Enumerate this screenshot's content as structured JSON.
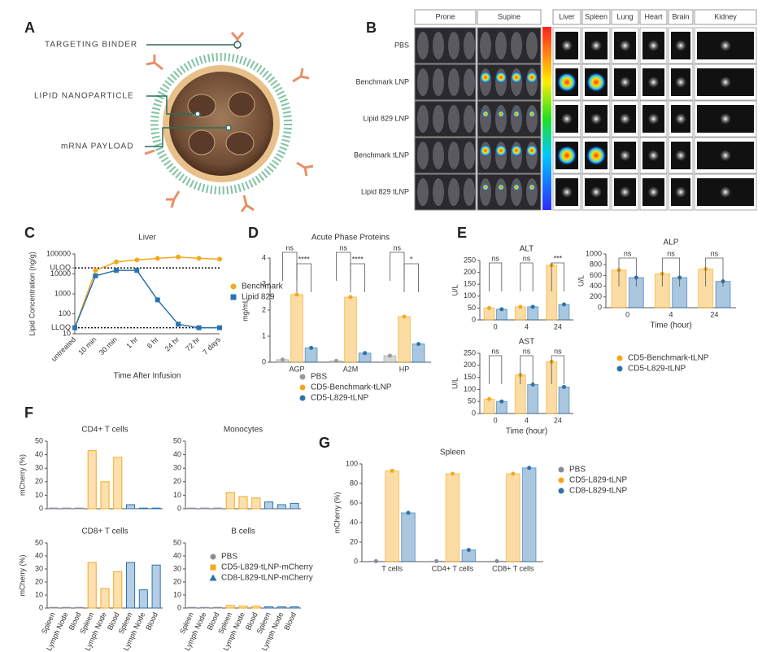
{
  "panels": [
    "A",
    "B",
    "C",
    "D",
    "E",
    "F",
    "G"
  ],
  "diagram": {
    "labels": [
      "TARGETING BINDER",
      "LIPID NANOPARTICLE",
      "mRNA PAYLOAD"
    ]
  },
  "imaging": {
    "views": [
      "Prone",
      "Supine"
    ],
    "organs": [
      "Liver",
      "Spleen",
      "Lung",
      "Heart",
      "Brain",
      "Kidney"
    ],
    "rows": [
      "PBS",
      "Benchmark LNP",
      "Lipid 829 LNP",
      "Benchmark tLNP",
      "Lipid 829 tLNP"
    ]
  },
  "chart_data": [
    {
      "type": "line",
      "title": "Liver",
      "x_label": "Time After Infusion",
      "y_label": "Lipid Concentration (ng/g)",
      "categories": [
        "untreated",
        "10 min",
        "30 min",
        "1 hr",
        "6 hr",
        "24 hr",
        "72 hr",
        "7 days"
      ],
      "log_scale": true,
      "ylim": [
        10,
        100000
      ],
      "yticks": [
        10,
        100,
        1000,
        10000,
        100000,
        {
          "value": 20000,
          "label": "ULOQ"
        },
        {
          "value": 20,
          "label": "LLOQ"
        }
      ],
      "series": [
        {
          "name": "Benchmark",
          "color": "#f5a81c",
          "marker": "circle",
          "values": [
            20,
            15000,
            40000,
            50000,
            60000,
            70000,
            60000,
            55000
          ]
        },
        {
          "name": "Lipid 829",
          "color": "#2b73b0",
          "marker": "square",
          "values": [
            20,
            8000,
            15000,
            15000,
            500,
            30,
            20,
            20
          ]
        }
      ]
    },
    {
      "type": "bar",
      "title": "Acute Phase Proteins",
      "y_label": "mg/mL",
      "categories": [
        "AGP",
        "A2M",
        "HP"
      ],
      "ylim": [
        0,
        4
      ],
      "yticks": [
        0,
        1,
        2,
        3,
        4
      ],
      "annotations": [
        "ns",
        "****",
        "ns",
        "****",
        "ns",
        "*"
      ],
      "series": [
        {
          "name": "PBS",
          "color": "#9a9a9a",
          "marker": "circle",
          "values": [
            0.1,
            0.05,
            0.25
          ]
        },
        {
          "name": "CD5-Benchmark-tLNP",
          "color": "#f5a81c",
          "marker": "circle",
          "values": [
            2.6,
            2.5,
            1.75
          ]
        },
        {
          "name": "CD5-L829-tLNP",
          "color": "#2b73b0",
          "marker": "circle",
          "values": [
            0.55,
            0.35,
            0.7
          ]
        }
      ]
    },
    {
      "type": "bar",
      "title": "ALT",
      "y_label": "U/L",
      "categories": [
        "0",
        "4",
        "24"
      ],
      "ylim": [
        0,
        250
      ],
      "yticks": [
        0,
        50,
        100,
        150,
        200,
        250
      ],
      "annotations": [
        "ns",
        "ns",
        "***"
      ],
      "series": [
        {
          "name": "CD5-Benchmark-tLNP",
          "color": "#f5a81c",
          "marker": "circle",
          "values": [
            50,
            55,
            230
          ]
        },
        {
          "name": "CD5-L829-tLNP",
          "color": "#2b73b0",
          "marker": "circle",
          "values": [
            45,
            55,
            65
          ]
        }
      ]
    },
    {
      "type": "bar",
      "title": "ALP",
      "y_label": "U/L",
      "x_label": "Time (hour)",
      "categories": [
        "0",
        "4",
        "24"
      ],
      "ylim": [
        0,
        1000
      ],
      "yticks": [
        0,
        200,
        400,
        600,
        800,
        1000
      ],
      "annotations": [
        "ns",
        "ns",
        "ns"
      ],
      "series": [
        {
          "color": "#f5a81c",
          "values": [
            700,
            630,
            720
          ]
        },
        {
          "color": "#2b73b0",
          "values": [
            560,
            560,
            490
          ]
        }
      ]
    },
    {
      "type": "bar",
      "title": "AST",
      "y_label": "U/L",
      "x_label": "Time (hour)",
      "categories": [
        "0",
        "4",
        "24"
      ],
      "ylim": [
        0,
        250
      ],
      "yticks": [
        0,
        50,
        100,
        150,
        200,
        250
      ],
      "annotations": [
        "ns",
        "ns",
        "ns"
      ],
      "series": [
        {
          "color": "#f5a81c",
          "values": [
            60,
            160,
            215
          ]
        },
        {
          "color": "#2b73b0",
          "values": [
            50,
            120,
            110
          ]
        }
      ]
    },
    {
      "type": "bar",
      "title": "CD4+ T cells",
      "y_label": "mCherry (%)",
      "categories": [
        "Spleen",
        "Lymph Node",
        "Blood"
      ],
      "ylim": [
        0,
        50
      ],
      "yticks": [
        0,
        10,
        20,
        30,
        40,
        50
      ],
      "series": [
        {
          "color": "#8a8a9a",
          "values": [
            0.5,
            0.5,
            0.5
          ]
        },
        {
          "color": "#f5a81c",
          "values": [
            43,
            20,
            38
          ]
        },
        {
          "color": "#2b73b0",
          "values": [
            3,
            0.5,
            0.5
          ]
        }
      ]
    },
    {
      "type": "bar",
      "title": "Monocytes",
      "categories": [
        "Spleen",
        "Lymph Node",
        "Blood"
      ],
      "ylim": [
        0,
        50
      ],
      "yticks": [
        0,
        10,
        20,
        30,
        40,
        50
      ],
      "series": [
        {
          "color": "#8a8a9a",
          "values": [
            0.5,
            0.5,
            0.5
          ]
        },
        {
          "color": "#f5a81c",
          "values": [
            12,
            9,
            8
          ]
        },
        {
          "color": "#2b73b0",
          "values": [
            5,
            3,
            4
          ]
        }
      ]
    },
    {
      "type": "bar",
      "title": "CD8+ T cells",
      "y_label": "mCherry (%)",
      "categories": [
        "Spleen",
        "Lymph Node",
        "Blood"
      ],
      "ylim": [
        0,
        50
      ],
      "yticks": [
        0,
        10,
        20,
        30,
        40,
        50
      ],
      "series": [
        {
          "color": "#8a8a9a",
          "values": [
            0.5,
            0.5,
            0.5
          ]
        },
        {
          "color": "#f5a81c",
          "values": [
            35,
            15,
            28
          ]
        },
        {
          "color": "#2b73b0",
          "values": [
            35,
            14,
            33
          ]
        }
      ]
    },
    {
      "type": "bar",
      "title": "B cells",
      "categories": [
        "Spleen",
        "Lymph Node",
        "Blood"
      ],
      "ylim": [
        0,
        50
      ],
      "yticks": [
        0,
        10,
        20,
        30,
        40,
        50
      ],
      "series": [
        {
          "name": "PBS",
          "color": "#8a8a9a",
          "marker": "circle",
          "values": [
            0.5,
            0.5,
            0.5
          ]
        },
        {
          "name": "CD5-L829-tLNP-mCherry",
          "color": "#f5a81c",
          "marker": "square",
          "values": [
            2,
            1.5,
            1.5
          ]
        },
        {
          "name": "CD8-L829-tLNP-mCherry",
          "color": "#2b73b0",
          "marker": "triangle",
          "values": [
            1,
            1,
            1
          ]
        }
      ]
    },
    {
      "type": "bar",
      "title": "Spleen",
      "y_label": "mCherry (%)",
      "categories": [
        "T cells",
        "CD4+ T cells",
        "CD8+ T cells"
      ],
      "ylim": [
        0,
        100
      ],
      "yticks": [
        0,
        20,
        40,
        60,
        80,
        100
      ],
      "series": [
        {
          "name": "PBS",
          "color": "#8a8a9a",
          "marker": "circle",
          "values": [
            0.5,
            0.5,
            0.5
          ]
        },
        {
          "name": "CD5-L829-tLNP",
          "color": "#f5a81c",
          "marker": "circle",
          "values": [
            93,
            90,
            90
          ]
        },
        {
          "name": "CD8-L829-tLNP",
          "color": "#2b73b0",
          "marker": "circle",
          "values": [
            50,
            12,
            96
          ]
        }
      ]
    }
  ]
}
